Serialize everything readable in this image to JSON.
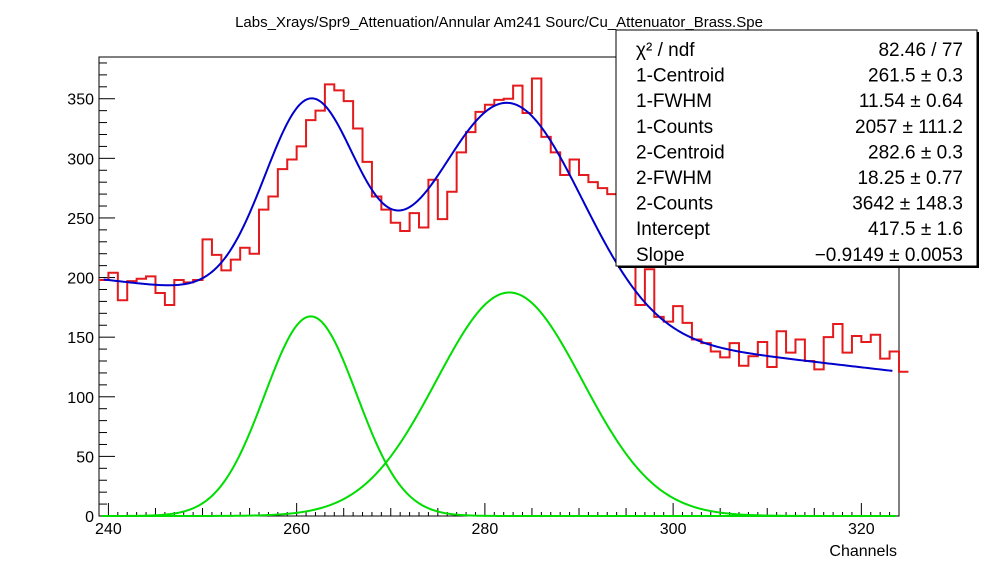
{
  "chart_data": {
    "type": "line",
    "title": "Labs_Xrays/Spr9_Attenuation/Annular Am241 Sourc/Cu_Attenuator_Brass.Spe",
    "xlabel": "Channels",
    "ylabel": "",
    "xlim": [
      239,
      324
    ],
    "ylim": [
      0,
      385
    ],
    "x_ticks": [
      240,
      260,
      280,
      300,
      320
    ],
    "y_ticks": [
      0,
      50,
      100,
      150,
      200,
      250,
      300,
      350
    ],
    "histogram": {
      "name": "data",
      "color": "#e41a1c",
      "bin_start": 239,
      "bin_width": 1,
      "counts": [
        198,
        204,
        181,
        197,
        199,
        201,
        187,
        177,
        198,
        196,
        198,
        232,
        219,
        206,
        215,
        225,
        220,
        257,
        268,
        291,
        299,
        310,
        332,
        340,
        362,
        357,
        348,
        325,
        297,
        268,
        257,
        246,
        239,
        254,
        242,
        282,
        249,
        272,
        305,
        322,
        339,
        345,
        349,
        350,
        361,
        338,
        367,
        318,
        305,
        286,
        299,
        286,
        280,
        275,
        270,
        212,
        224,
        177,
        207,
        167,
        163,
        176,
        162,
        148,
        145,
        138,
        133,
        145,
        126,
        134,
        146,
        125,
        155,
        137,
        148,
        130,
        123,
        150,
        161,
        137,
        151,
        146,
        152,
        132,
        138,
        121
      ]
    },
    "fit": {
      "name": "total fit",
      "color": "#0000cc",
      "intercept": 417.5,
      "slope": -0.9149,
      "peaks": [
        {
          "centroid": 261.5,
          "fwhm": 11.54,
          "counts": 2057
        },
        {
          "centroid": 282.6,
          "fwhm": 18.25,
          "counts": 3642
        }
      ]
    },
    "components": {
      "color": "#00dd00"
    },
    "stats_box": [
      {
        "label": "χ² / ndf",
        "value": "82.46 / 77"
      },
      {
        "label": "1-Centroid",
        "value": "261.5 ± 0.3"
      },
      {
        "label": "1-FWHM",
        "value": "11.54 ± 0.64"
      },
      {
        "label": "1-Counts",
        "value": "2057 ± 111.2"
      },
      {
        "label": "2-Centroid",
        "value": "282.6 ± 0.3"
      },
      {
        "label": "2-FWHM",
        "value": "18.25 ± 0.77"
      },
      {
        "label": "2-Counts",
        "value": "3642 ± 148.3"
      },
      {
        "label": "Intercept",
        "value": "417.5 ± 1.6"
      },
      {
        "label": "Slope",
        "value": "−0.9149 ± 0.0053"
      }
    ]
  }
}
